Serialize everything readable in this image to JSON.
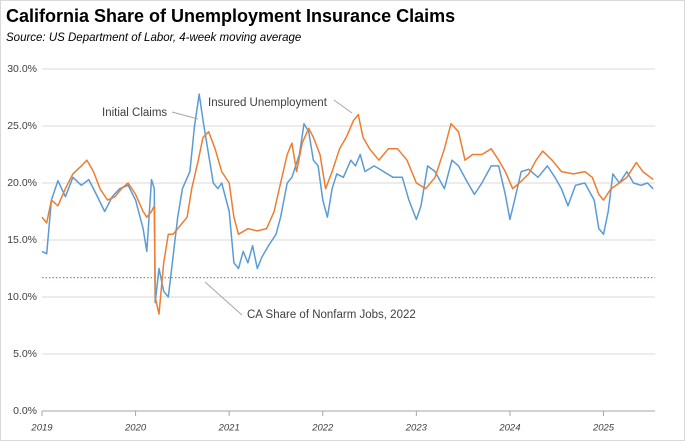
{
  "chart_data": {
    "type": "line",
    "title": "California Share of Unemployment Insurance Claims",
    "subtitle": "Source:  US Department of Labor, 4-week moving average",
    "xlim": [
      2019,
      2025.55
    ],
    "xticks": [
      2019,
      2020,
      2021,
      2022,
      2023,
      2024,
      2025
    ],
    "ylim": [
      0,
      30
    ],
    "yticks": [
      {
        "value": 0,
        "label": "0.0%"
      },
      {
        "value": 5,
        "label": "5.0%"
      },
      {
        "value": 10,
        "label": "10.0%"
      },
      {
        "value": 15,
        "label": "15.0%"
      },
      {
        "value": 20,
        "label": "20.0%"
      },
      {
        "value": 25,
        "label": "25.0%"
      },
      {
        "value": 30,
        "label": "30.0%"
      }
    ],
    "grid": true,
    "reference_line": {
      "value": 11.7,
      "label": "CA Share of Nonfarm Jobs, 2022",
      "color": "#70ad47"
    },
    "series": [
      {
        "name": "Initial Claims",
        "color": "#5b9bd5",
        "x": [
          2019.0,
          2019.05,
          2019.1,
          2019.17,
          2019.25,
          2019.33,
          2019.42,
          2019.5,
          2019.58,
          2019.67,
          2019.75,
          2019.83,
          2019.92,
          2020.0,
          2020.08,
          2020.12,
          2020.17,
          2020.2,
          2020.21,
          2020.25,
          2020.3,
          2020.35,
          2020.4,
          2020.45,
          2020.5,
          2020.58,
          2020.63,
          2020.68,
          2020.72,
          2020.78,
          2020.83,
          2020.88,
          2020.92,
          2021.0,
          2021.05,
          2021.1,
          2021.15,
          2021.2,
          2021.25,
          2021.3,
          2021.35,
          2021.42,
          2021.5,
          2021.55,
          2021.62,
          2021.67,
          2021.75,
          2021.8,
          2021.85,
          2021.9,
          2021.95,
          2022.0,
          2022.05,
          2022.1,
          2022.15,
          2022.22,
          2022.3,
          2022.35,
          2022.4,
          2022.45,
          2022.55,
          2022.65,
          2022.75,
          2022.85,
          2022.92,
          2023.0,
          2023.05,
          2023.12,
          2023.2,
          2023.3,
          2023.38,
          2023.45,
          2023.55,
          2023.62,
          2023.7,
          2023.8,
          2023.88,
          2023.95,
          2024.0,
          2024.05,
          2024.12,
          2024.2,
          2024.3,
          2024.4,
          2024.48,
          2024.55,
          2024.62,
          2024.7,
          2024.8,
          2024.9,
          2024.95,
          2025.0,
          2025.05,
          2025.1,
          2025.17,
          2025.25,
          2025.32,
          2025.4,
          2025.47,
          2025.53
        ],
        "values": [
          14.0,
          13.8,
          18.5,
          20.2,
          18.8,
          20.5,
          19.8,
          20.3,
          19.0,
          17.5,
          18.8,
          19.5,
          19.8,
          18.5,
          16.0,
          14.0,
          20.3,
          19.5,
          9.5,
          12.5,
          10.5,
          10.0,
          13.5,
          17.0,
          19.5,
          21.0,
          25.0,
          27.8,
          25.5,
          22.5,
          20.0,
          19.5,
          20.0,
          17.5,
          13.0,
          12.5,
          14.0,
          13.0,
          14.5,
          12.5,
          13.5,
          14.5,
          15.5,
          17.0,
          20.0,
          20.5,
          22.5,
          25.2,
          24.5,
          22.0,
          21.5,
          18.5,
          17.0,
          19.5,
          20.8,
          20.5,
          22.0,
          21.5,
          22.5,
          21.0,
          21.5,
          21.0,
          20.5,
          20.5,
          18.5,
          16.8,
          18.0,
          21.5,
          21.0,
          19.5,
          22.0,
          21.5,
          20.0,
          19.0,
          20.0,
          21.5,
          21.5,
          19.0,
          16.8,
          18.5,
          21.0,
          21.2,
          20.5,
          21.5,
          20.5,
          19.5,
          18.0,
          19.8,
          20.0,
          18.5,
          16.0,
          15.5,
          17.5,
          20.8,
          20.0,
          21.0,
          20.0,
          19.8,
          20.0,
          19.5
        ]
      },
      {
        "name": "Insured Unemployment",
        "color": "#ed7d31",
        "x": [
          2019.0,
          2019.05,
          2019.1,
          2019.17,
          2019.25,
          2019.33,
          2019.42,
          2019.48,
          2019.55,
          2019.62,
          2019.7,
          2019.78,
          2019.85,
          2019.92,
          2020.0,
          2020.08,
          2020.12,
          2020.17,
          2020.2,
          2020.21,
          2020.25,
          2020.3,
          2020.35,
          2020.4,
          2020.45,
          2020.55,
          2020.6,
          2020.67,
          2020.72,
          2020.78,
          2020.85,
          2020.92,
          2021.0,
          2021.05,
          2021.1,
          2021.2,
          2021.3,
          2021.4,
          2021.48,
          2021.55,
          2021.62,
          2021.67,
          2021.72,
          2021.78,
          2021.85,
          2021.9,
          2021.97,
          2022.03,
          2022.1,
          2022.18,
          2022.25,
          2022.33,
          2022.38,
          2022.43,
          2022.5,
          2022.6,
          2022.7,
          2022.8,
          2022.9,
          2023.0,
          2023.1,
          2023.2,
          2023.3,
          2023.37,
          2023.45,
          2023.52,
          2023.6,
          2023.7,
          2023.8,
          2023.88,
          2023.95,
          2024.03,
          2024.1,
          2024.2,
          2024.28,
          2024.35,
          2024.45,
          2024.55,
          2024.68,
          2024.8,
          2024.88,
          2024.95,
          2025.0,
          2025.08,
          2025.17,
          2025.25,
          2025.35,
          2025.42,
          2025.5,
          2025.53
        ],
        "values": [
          17.0,
          16.5,
          18.5,
          18.0,
          19.5,
          20.8,
          21.5,
          22.0,
          21.0,
          19.5,
          18.5,
          18.8,
          19.5,
          20.0,
          19.0,
          17.5,
          17.0,
          17.5,
          18.0,
          10.0,
          8.5,
          13.0,
          15.5,
          15.5,
          16.0,
          17.0,
          19.5,
          22.0,
          24.0,
          24.5,
          23.0,
          21.0,
          20.0,
          17.0,
          15.5,
          16.0,
          15.8,
          16.0,
          17.5,
          20.0,
          22.5,
          23.5,
          21.0,
          23.5,
          24.8,
          24.0,
          22.5,
          19.5,
          21.0,
          23.0,
          24.0,
          25.5,
          26.0,
          24.0,
          23.0,
          22.0,
          23.0,
          23.0,
          22.0,
          20.0,
          19.5,
          20.5,
          23.0,
          25.2,
          24.5,
          22.0,
          22.5,
          22.5,
          23.0,
          22.0,
          21.0,
          19.5,
          20.0,
          20.8,
          22.0,
          22.8,
          22.0,
          21.0,
          20.8,
          21.0,
          20.5,
          19.0,
          18.5,
          19.5,
          20.0,
          20.5,
          21.8,
          21.0,
          20.5,
          20.3
        ]
      }
    ]
  }
}
